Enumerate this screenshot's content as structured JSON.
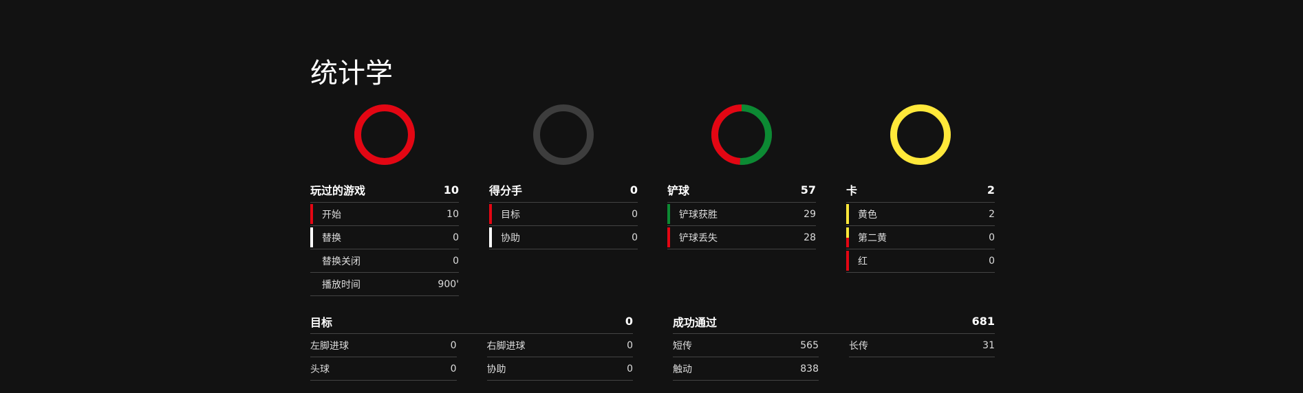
{
  "title": "统计学",
  "colors": {
    "red": "#e30613",
    "green": "#0c8a33",
    "yellow": "#ffe83a",
    "white": "#ffffff",
    "gray": "#3d3d3d"
  },
  "cards": [
    {
      "label": "玩过的游戏",
      "value": "10",
      "ring": [
        {
          "value": 10,
          "color": "#e30613"
        },
        {
          "value": 0,
          "color": "#ffffff"
        }
      ],
      "rows": [
        {
          "label": "开始",
          "value": "10",
          "bar": [
            "#e30613"
          ]
        },
        {
          "label": "替换",
          "value": "0",
          "bar": [
            "#ffffff"
          ]
        },
        {
          "label": "替换关闭",
          "value": "0",
          "bar": []
        },
        {
          "label": "播放时间",
          "value": "900'",
          "bar": []
        }
      ]
    },
    {
      "label": "得分手",
      "value": "0",
      "ring": [],
      "rows": [
        {
          "label": "目标",
          "value": "0",
          "bar": [
            "#e30613"
          ]
        },
        {
          "label": "协助",
          "value": "0",
          "bar": [
            "#ffffff"
          ]
        }
      ]
    },
    {
      "label": "铲球",
      "value": "57",
      "ring": [
        {
          "value": 29,
          "color": "#0c8a33"
        },
        {
          "value": 28,
          "color": "#e30613"
        }
      ],
      "rows": [
        {
          "label": "铲球获胜",
          "value": "29",
          "bar": [
            "#0c8a33"
          ]
        },
        {
          "label": "铲球丢失",
          "value": "28",
          "bar": [
            "#e30613"
          ]
        }
      ]
    },
    {
      "label": "卡",
      "value": "2",
      "ring": [
        {
          "value": 2,
          "color": "#ffe83a"
        },
        {
          "value": 0,
          "color": "#e30613"
        }
      ],
      "rows": [
        {
          "label": "黄色",
          "value": "2",
          "bar": [
            "#ffe83a"
          ]
        },
        {
          "label": "第二黄",
          "value": "0",
          "bar": [
            "#ffe83a",
            "#e30613"
          ]
        },
        {
          "label": "红",
          "value": "0",
          "bar": [
            "#e30613"
          ]
        }
      ]
    }
  ],
  "goals": {
    "label": "目标",
    "value": "0",
    "items": [
      {
        "label": "左脚进球",
        "value": "0"
      },
      {
        "label": "右脚进球",
        "value": "0"
      },
      {
        "label": "头球",
        "value": "0"
      },
      {
        "label": "协助",
        "value": "0"
      }
    ]
  },
  "passes": {
    "label": "成功通过",
    "value": "681",
    "items": [
      {
        "label": "短传",
        "value": "565"
      },
      {
        "label": "长传",
        "value": "31"
      },
      {
        "label": "触动",
        "value": "838"
      }
    ]
  }
}
